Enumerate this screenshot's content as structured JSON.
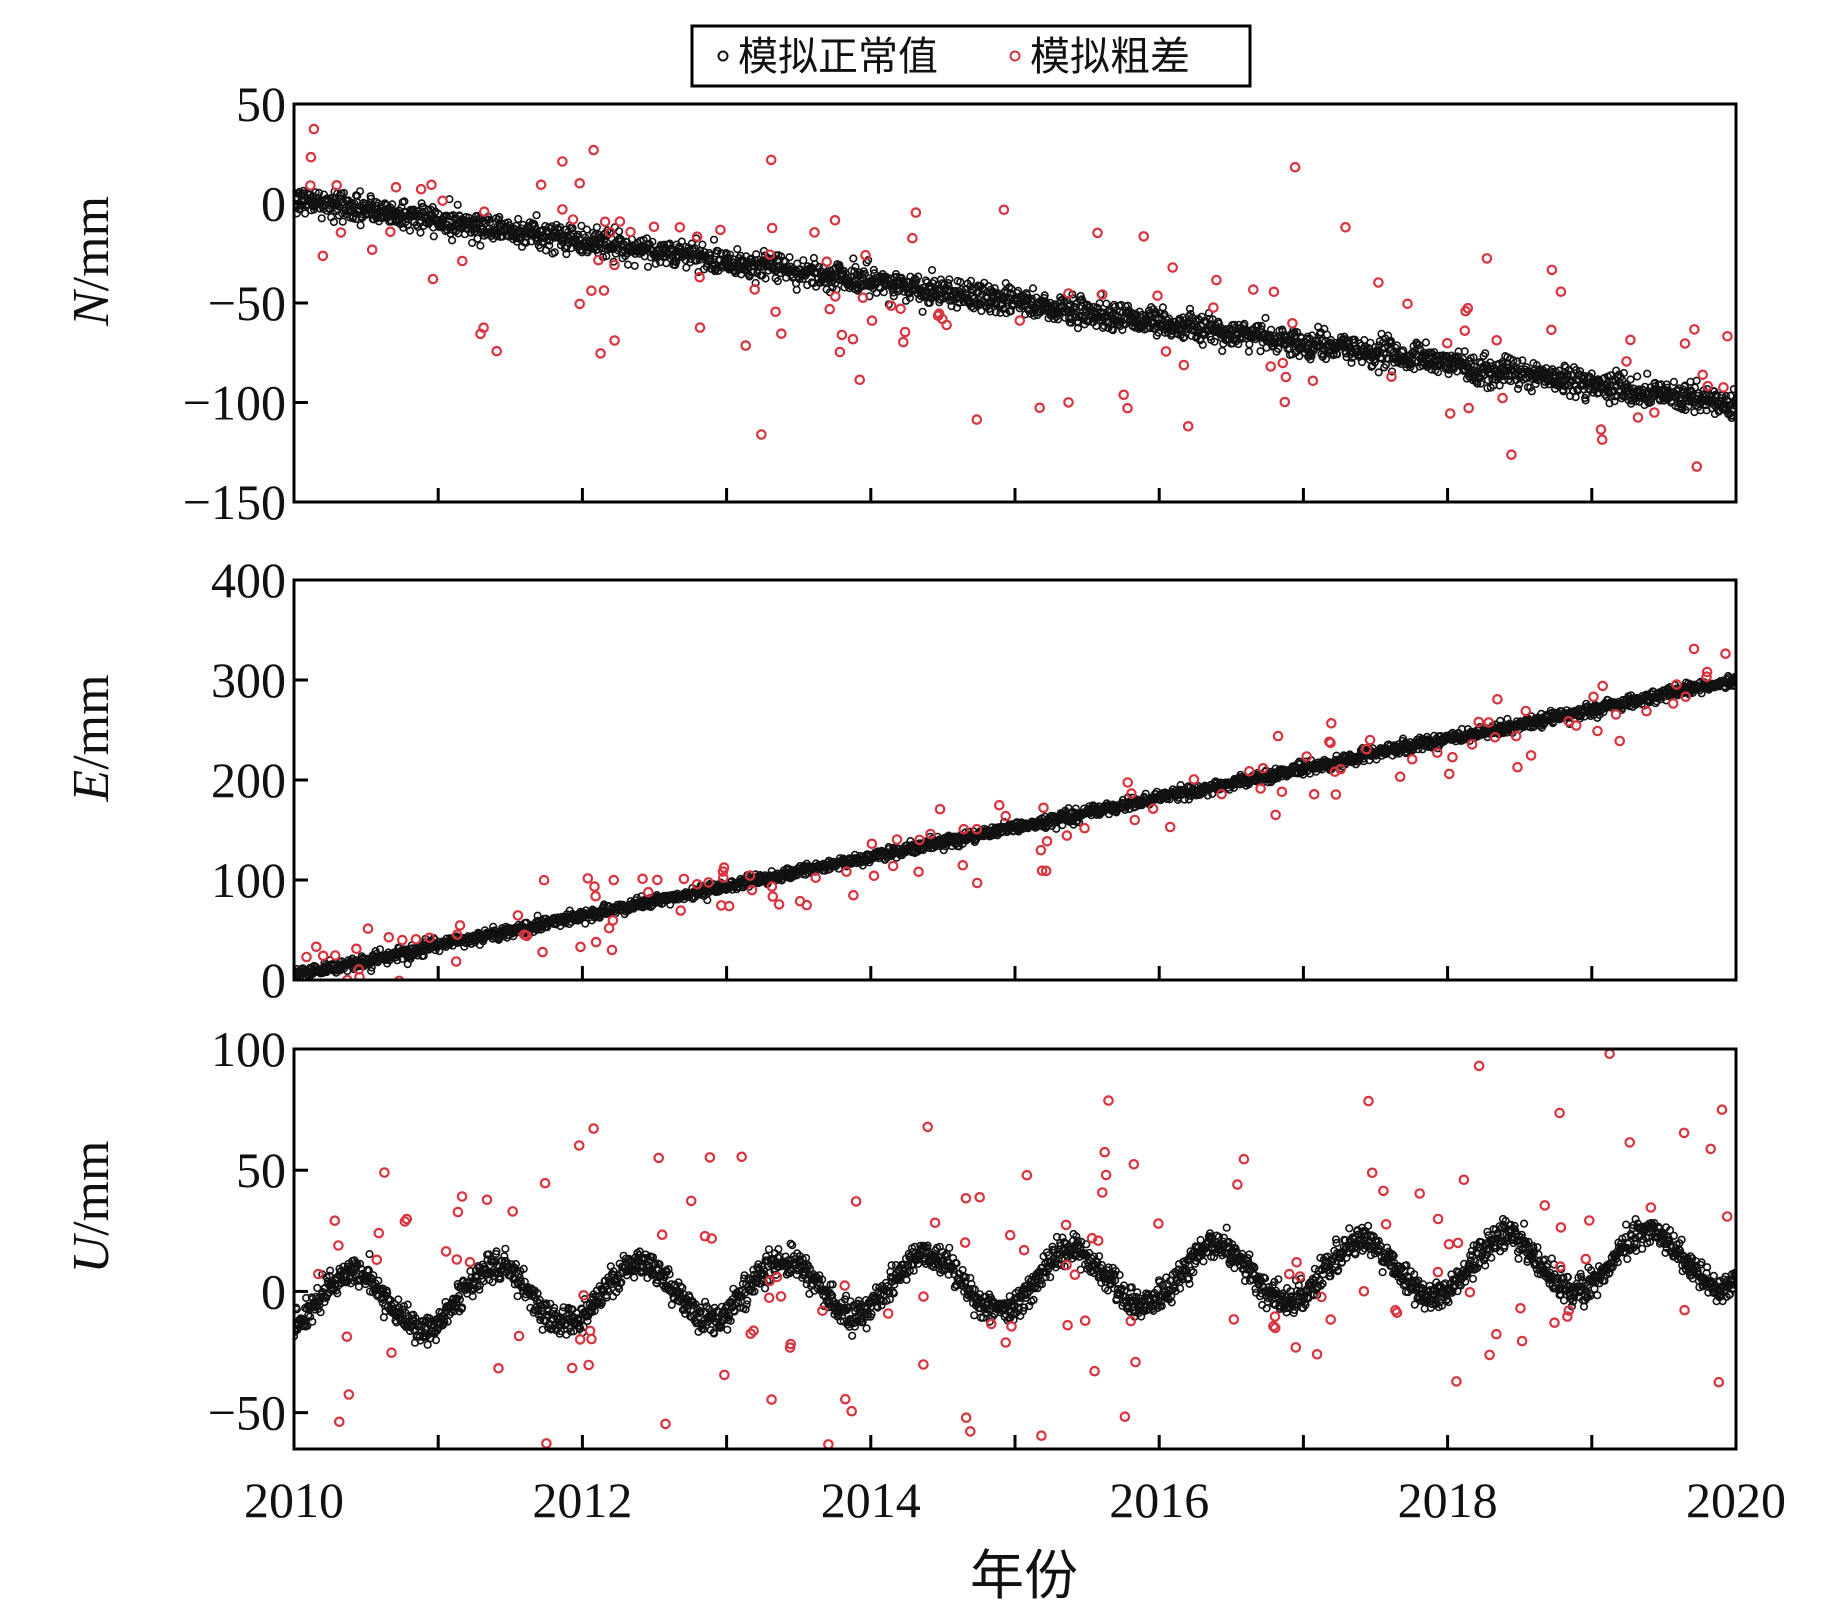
{
  "legend": {
    "normal_label": "模拟正常值",
    "gross_label": "模拟粗差",
    "normal_color": "#111111",
    "gross_color": "#d8343f"
  },
  "xaxis": {
    "label": "年份",
    "range": [
      2010,
      2020
    ],
    "ticks": [
      "2010",
      "2012",
      "2014",
      "2016",
      "2018",
      "2020"
    ]
  },
  "chart_data": [
    {
      "type": "scatter",
      "ylabel_italic": "N",
      "ylabel_unit": "/mm",
      "xlim": [
        2010,
        2020
      ],
      "ylim": [
        -150,
        50
      ],
      "yticks": [
        "50",
        "0",
        "−50",
        "−100",
        "−150"
      ],
      "series": [
        {
          "name": "模拟正常值",
          "kind": "trend",
          "start": 2,
          "slope": -10.3,
          "amplitude": 0,
          "noise": 3.5
        },
        {
          "name": "模拟粗差",
          "kind": "outliers",
          "count": 130,
          "spread": 28
        }
      ]
    },
    {
      "type": "scatter",
      "ylabel_italic": "E",
      "ylabel_unit": "/mm",
      "xlim": [
        2010,
        2020
      ],
      "ylim": [
        0,
        400
      ],
      "yticks": [
        "400",
        "300",
        "200",
        "100",
        "0"
      ],
      "series": [
        {
          "name": "模拟正常值",
          "kind": "trend",
          "start": 5,
          "slope": 29.5,
          "amplitude": 0,
          "noise": 3
        },
        {
          "name": "模拟粗差",
          "kind": "outliers",
          "count": 130,
          "spread": 22
        }
      ]
    },
    {
      "type": "scatter",
      "ylabel_italic": "U",
      "ylabel_unit": "/mm",
      "xlim": [
        2010,
        2020
      ],
      "ylim": [
        -65,
        100
      ],
      "yticks": [
        "100",
        "50",
        "0",
        "−50"
      ],
      "series": [
        {
          "name": "模拟正常值",
          "kind": "trend",
          "start": -5,
          "slope": 1.9,
          "amplitude": 12,
          "noise": 3
        },
        {
          "name": "模拟粗差",
          "kind": "outliers",
          "count": 150,
          "spread": 38
        }
      ]
    }
  ]
}
